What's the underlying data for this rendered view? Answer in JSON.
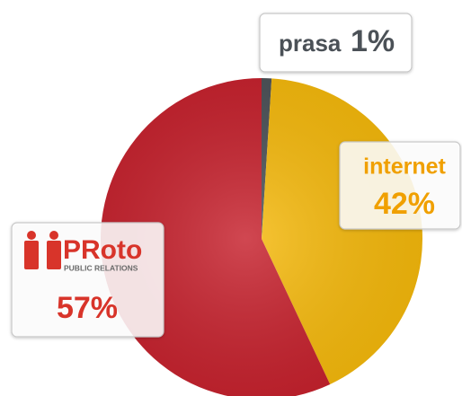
{
  "chart_data": {
    "type": "pie",
    "categories": [
      "prasa",
      "internet",
      "PRoto"
    ],
    "logo_subtitle": "PUBLIC RELATIONS",
    "values": [
      1,
      42,
      57
    ],
    "value_labels": [
      "1%",
      "42%",
      "57%"
    ],
    "colors": [
      "#4b5157",
      "#f6b90a",
      "#c61f2b"
    ],
    "label_colors": [
      "#4b5157",
      "#f0a000",
      "#d8342a"
    ]
  }
}
